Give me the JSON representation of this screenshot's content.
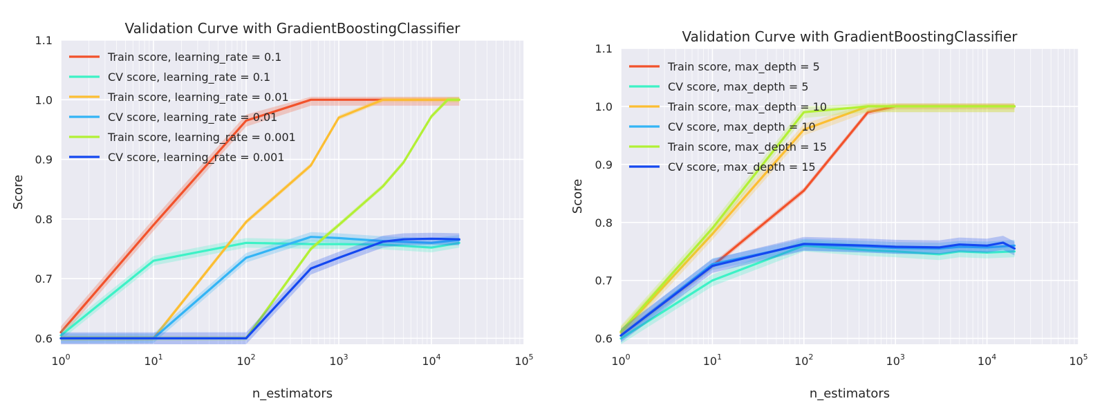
{
  "colors": {
    "lr_train_0.1": "#F2522B",
    "lr_cv_0.1": "#3DF2C6",
    "lr_train_0.01": "#FCBE32",
    "lr_cv_0.01": "#33B4F5",
    "lr_train_0.001": "#B2F035",
    "lr_cv_0.001": "#1448F0"
  },
  "chart_data": [
    {
      "type": "line",
      "title": "Validation Curve with GradientBoostingClassifier",
      "xlabel": "n_estimators",
      "ylabel": "Score",
      "xscale": "log",
      "xlim": [
        1,
        100000
      ],
      "ylim": [
        0.59,
        1.1
      ],
      "xticks": [
        1,
        10,
        100,
        1000,
        10000,
        100000
      ],
      "xtick_labels": [
        {
          "base": "10",
          "exp": "0"
        },
        {
          "base": "10",
          "exp": "1"
        },
        {
          "base": "10",
          "exp": "2"
        },
        {
          "base": "10",
          "exp": "3"
        },
        {
          "base": "10",
          "exp": "4"
        },
        {
          "base": "10",
          "exp": "5"
        }
      ],
      "yticks": [
        0.6,
        0.7,
        0.8,
        0.9,
        1.0,
        1.1
      ],
      "ytick_labels": [
        "0.6",
        "0.7",
        "0.8",
        "0.9",
        "1.0",
        "1.1"
      ],
      "grid": true,
      "legend": "top-left",
      "series": [
        {
          "name": "Train score, learning_rate = 0.1",
          "color": "#F2522B",
          "band": 0.01,
          "x": [
            1,
            10,
            100,
            500,
            1000,
            3000,
            10000,
            20000
          ],
          "y": [
            0.61,
            0.79,
            0.965,
            1.0,
            1.0,
            1.0,
            1.0,
            1.0
          ]
        },
        {
          "name": "CV score, learning_rate = 0.1",
          "color": "#3DF2C6",
          "band": 0.008,
          "x": [
            1,
            10,
            100,
            500,
            1000,
            3000,
            5000,
            10000,
            20000
          ],
          "y": [
            0.605,
            0.73,
            0.76,
            0.758,
            0.758,
            0.757,
            0.755,
            0.752,
            0.76
          ]
        },
        {
          "name": "Train score, learning_rate = 0.01",
          "color": "#FCBE32",
          "band": 0.004,
          "x": [
            1,
            10,
            100,
            500,
            1000,
            3000,
            10000,
            20000
          ],
          "y": [
            0.6,
            0.6,
            0.795,
            0.89,
            0.97,
            1.0,
            1.0,
            1.0
          ]
        },
        {
          "name": "CV score, learning_rate = 0.01",
          "color": "#33B4F5",
          "band": 0.008,
          "x": [
            1,
            10,
            100,
            500,
            1000,
            3000,
            10000,
            20000
          ],
          "y": [
            0.6,
            0.6,
            0.735,
            0.77,
            0.768,
            0.763,
            0.76,
            0.765
          ]
        },
        {
          "name": "Train score, learning_rate = 0.001",
          "color": "#B2F035",
          "band": 0.004,
          "x": [
            1,
            10,
            100,
            500,
            1000,
            3000,
            5000,
            10000,
            15000,
            20000
          ],
          "y": [
            0.6,
            0.6,
            0.6,
            0.75,
            0.79,
            0.855,
            0.895,
            0.972,
            1.0,
            1.0
          ]
        },
        {
          "name": "CV score, learning_rate = 0.001",
          "color": "#1448F0",
          "band": 0.01,
          "x": [
            1,
            10,
            100,
            500,
            1000,
            3000,
            5000,
            10000,
            20000
          ],
          "y": [
            0.6,
            0.6,
            0.6,
            0.717,
            0.735,
            0.762,
            0.766,
            0.767,
            0.766
          ]
        }
      ]
    },
    {
      "type": "line",
      "title": "Validation Curve with GradientBoostingClassifier",
      "xlabel": "n_estimators",
      "ylabel": "Score",
      "xscale": "log",
      "xlim": [
        1,
        100000
      ],
      "ylim": [
        0.59,
        1.1
      ],
      "xticks": [
        1,
        10,
        100,
        1000,
        10000,
        100000
      ],
      "xtick_labels": [
        {
          "base": "10",
          "exp": "0"
        },
        {
          "base": "10",
          "exp": "1"
        },
        {
          "base": "10",
          "exp": "2"
        },
        {
          "base": "10",
          "exp": "3"
        },
        {
          "base": "10",
          "exp": "4"
        },
        {
          "base": "10",
          "exp": "5"
        }
      ],
      "yticks": [
        0.6,
        0.7,
        0.8,
        0.9,
        1.0,
        1.1
      ],
      "ytick_labels": [
        "0.6",
        "0.7",
        "0.8",
        "0.9",
        "1.0",
        "1.1"
      ],
      "grid": true,
      "legend": "top-left",
      "series": [
        {
          "name": "Train score, max_depth = 5",
          "color": "#F2522B",
          "band": 0.005,
          "x": [
            1,
            10,
            100,
            500,
            1000,
            3000,
            10000,
            20000
          ],
          "y": [
            0.605,
            0.725,
            0.855,
            0.99,
            1.0,
            1.0,
            1.0,
            1.0
          ]
        },
        {
          "name": "CV score, max_depth = 5",
          "color": "#3DF2C6",
          "band": 0.01,
          "x": [
            1,
            10,
            100,
            500,
            1000,
            3000,
            5000,
            10000,
            20000
          ],
          "y": [
            0.6,
            0.7,
            0.76,
            0.752,
            0.75,
            0.745,
            0.75,
            0.748,
            0.75
          ]
        },
        {
          "name": "Train score, max_depth = 10",
          "color": "#FCBE32",
          "band": 0.01,
          "x": [
            1,
            10,
            100,
            500,
            1000,
            3000,
            10000,
            20000
          ],
          "y": [
            0.61,
            0.78,
            0.96,
            1.0,
            1.0,
            1.0,
            1.0,
            1.0
          ]
        },
        {
          "name": "CV score, max_depth = 10",
          "color": "#33B4F5",
          "band": 0.01,
          "x": [
            1,
            10,
            100,
            500,
            1000,
            3000,
            5000,
            10000,
            20000
          ],
          "y": [
            0.605,
            0.728,
            0.762,
            0.758,
            0.756,
            0.755,
            0.758,
            0.757,
            0.76
          ]
        },
        {
          "name": "Train score, max_depth = 15",
          "color": "#B2F035",
          "band": 0.01,
          "x": [
            1,
            10,
            100,
            500,
            1000,
            3000,
            10000,
            20000
          ],
          "y": [
            0.612,
            0.79,
            0.99,
            1.0,
            1.0,
            1.0,
            1.0,
            1.0
          ]
        },
        {
          "name": "CV score, max_depth = 15",
          "color": "#1448F0",
          "band": 0.012,
          "x": [
            1,
            10,
            100,
            500,
            1000,
            3000,
            5000,
            10000,
            15000,
            20000
          ],
          "y": [
            0.605,
            0.725,
            0.763,
            0.76,
            0.758,
            0.757,
            0.762,
            0.76,
            0.765,
            0.755
          ]
        }
      ]
    }
  ]
}
